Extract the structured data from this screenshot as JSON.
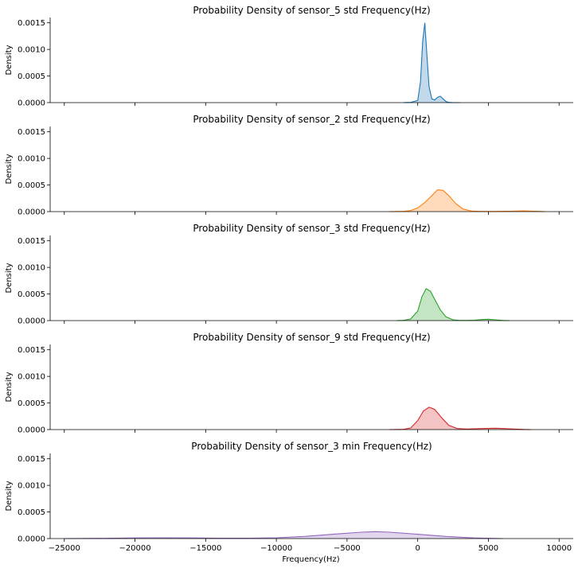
{
  "chart_data": [
    {
      "type": "area",
      "title": "Probability Density of sensor_5 std Frequency(Hz)",
      "xlabel": "",
      "ylabel": "Density",
      "xlim": [
        -26000,
        11000
      ],
      "ylim": [
        0,
        0.0016
      ],
      "yticks": [
        "0.0000",
        "0.0005",
        "0.0010",
        "0.0015"
      ],
      "color": "#1f77b4",
      "series": [
        {
          "x": [
            -1000,
            -500,
            0,
            200,
            350,
            500,
            650,
            800,
            1000,
            1200,
            1400,
            1600,
            1800,
            2000,
            2200,
            2500,
            3000
          ],
          "y": [
            0,
            5e-06,
            4e-05,
            0.0004,
            0.00115,
            0.0015,
            0.0009,
            0.0003,
            7e-05,
            5e-05,
            0.0001,
            0.00012,
            7e-05,
            2e-05,
            5e-06,
            0,
            0
          ]
        }
      ]
    },
    {
      "type": "area",
      "title": "Probability Density of sensor_2 std Frequency(Hz)",
      "xlabel": "",
      "ylabel": "Density",
      "xlim": [
        -26000,
        11000
      ],
      "ylim": [
        0,
        0.0016
      ],
      "yticks": [
        "0.0000",
        "0.0005",
        "0.0010",
        "0.0015"
      ],
      "color": "#ff7f0e",
      "series": [
        {
          "x": [
            -2000,
            -1000,
            -500,
            0,
            500,
            1000,
            1400,
            1800,
            2200,
            2700,
            3200,
            3800,
            4500,
            5500,
            6500,
            7500,
            8500,
            9000
          ],
          "y": [
            0,
            5e-06,
            2e-05,
            7e-05,
            0.00017,
            0.0003,
            0.00041,
            0.0004,
            0.0003,
            0.00015,
            5e-05,
            1e-05,
            3e-06,
            3e-06,
            8e-06,
            1.5e-05,
            5e-06,
            0
          ]
        }
      ]
    },
    {
      "type": "area",
      "title": "Probability Density of sensor_3 std Frequency(Hz)",
      "xlabel": "",
      "ylabel": "Density",
      "xlim": [
        -26000,
        11000
      ],
      "ylim": [
        0,
        0.0016
      ],
      "yticks": [
        "0.0000",
        "0.0005",
        "0.0010",
        "0.0015"
      ],
      "color": "#2ca02c",
      "series": [
        {
          "x": [
            -1500,
            -1000,
            -500,
            0,
            300,
            600,
            900,
            1200,
            1600,
            2000,
            2500,
            3000,
            3500,
            4000,
            4500,
            5000,
            5500,
            6000,
            6500
          ],
          "y": [
            0,
            5e-06,
            3e-05,
            0.00018,
            0.00045,
            0.0006,
            0.00055,
            0.0004,
            0.0002,
            7e-05,
            1.5e-05,
            3e-06,
            3e-06,
            8e-06,
            2e-05,
            2.5e-05,
            1.5e-05,
            3e-06,
            0
          ]
        }
      ]
    },
    {
      "type": "area",
      "title": "Probability Density of sensor_9 std Frequency(Hz)",
      "xlabel": "",
      "ylabel": "Density",
      "xlim": [
        -26000,
        11000
      ],
      "ylim": [
        0,
        0.0016
      ],
      "yticks": [
        "0.0000",
        "0.0005",
        "0.0010",
        "0.0015"
      ],
      "color": "#d62728",
      "series": [
        {
          "x": [
            -2000,
            -1000,
            -500,
            0,
            400,
            800,
            1200,
            1700,
            2200,
            2800,
            3500,
            4500,
            5500,
            6500,
            7500,
            8000
          ],
          "y": [
            0,
            5e-06,
            3e-05,
            0.00017,
            0.00035,
            0.00042,
            0.00038,
            0.00022,
            8e-05,
            2e-05,
            1e-05,
            2e-05,
            2.5e-05,
            1.5e-05,
            3e-06,
            0
          ]
        }
      ]
    },
    {
      "type": "area",
      "title": "Probability Density of sensor_3 min Frequency(Hz)",
      "xlabel": "Frequency(Hz)",
      "ylabel": "Density",
      "xlim": [
        -26000,
        11000
      ],
      "ylim": [
        0,
        0.0016
      ],
      "yticks": [
        "0.0000",
        "0.0005",
        "0.0010",
        "0.0015"
      ],
      "xticks": [
        -25000,
        -20000,
        -15000,
        -10000,
        -5000,
        0,
        5000,
        10000
      ],
      "color": "#9467bd",
      "series": [
        {
          "x": [
            -25000,
            -22000,
            -20000,
            -18000,
            -16000,
            -14000,
            -12000,
            -10000,
            -8000,
            -6000,
            -4000,
            -3000,
            -2000,
            0,
            2000,
            4000,
            5000,
            6000
          ],
          "y": [
            0,
            5e-06,
            1.2e-05,
            1.5e-05,
            1.2e-05,
            8e-06,
            8e-06,
            1.5e-05,
            4e-05,
            8e-05,
            0.00012,
            0.00013,
            0.00012,
            8e-05,
            4e-05,
            1.2e-05,
            5e-06,
            0
          ]
        }
      ]
    }
  ]
}
